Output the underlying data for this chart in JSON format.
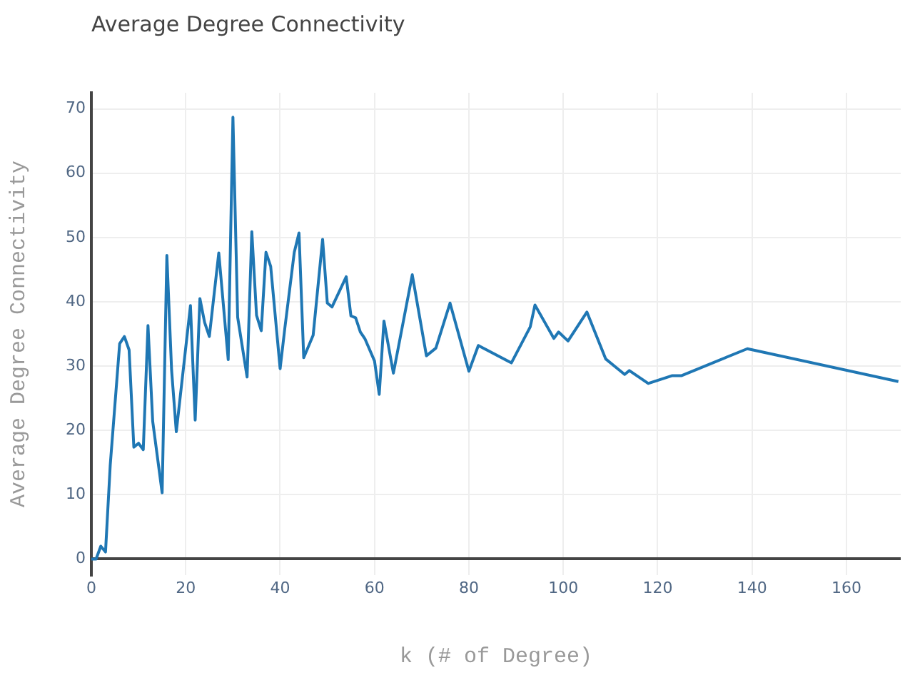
{
  "chart_data": {
    "type": "line",
    "title": "Average Degree Connectivity",
    "xlabel": "k (# of Degree)",
    "ylabel": "Average Degree Connectivity",
    "x": [
      0,
      1,
      2,
      3,
      4,
      6,
      7,
      8,
      9,
      10,
      11,
      12,
      13,
      15,
      16,
      17,
      18,
      21,
      22,
      23,
      24,
      25,
      27,
      29,
      30,
      31,
      33,
      34,
      35,
      36,
      37,
      38,
      40,
      41,
      43,
      44,
      45,
      47,
      49,
      50,
      51,
      54,
      55,
      56,
      57,
      58,
      60,
      61,
      62,
      64,
      68,
      71,
      73,
      76,
      80,
      82,
      89,
      93,
      94,
      98,
      99,
      101,
      105,
      109,
      113,
      114,
      118,
      123,
      125,
      139,
      171
    ],
    "series": [
      {
        "color": "#1f77b4",
        "values": [
          0,
          0,
          2,
          1.1,
          14.6,
          33.5,
          34.6,
          32.5,
          17.4,
          18,
          17,
          36.3,
          21.4,
          10.3,
          47.2,
          29.4,
          19.8,
          39.4,
          21.6,
          40.5,
          36.8,
          34.6,
          47.6,
          31,
          68.7,
          37.6,
          28.3,
          50.9,
          37.9,
          35.5,
          47.7,
          45.5,
          29.6,
          35.9,
          47.7,
          50.7,
          31.3,
          34.8,
          49.7,
          39.8,
          39.2,
          43.9,
          37.8,
          37.5,
          35.3,
          34.2,
          30.8,
          25.6,
          37,
          28.9,
          44.2,
          31.6,
          32.8,
          39.8,
          29.2,
          33.2,
          30.5,
          36.1,
          39.5,
          34.3,
          35.3,
          33.9,
          38.4,
          31.1,
          28.7,
          29.3,
          27.3,
          28.5,
          28.5,
          32.7,
          27.6
        ]
      }
    ],
    "xlim": [
      0,
      171.5
    ],
    "ylim": [
      -2.5,
      72.5
    ],
    "xticks": [
      0,
      20,
      40,
      60,
      80,
      100,
      120,
      140,
      160
    ],
    "yticks": [
      0,
      10,
      20,
      30,
      40,
      50,
      60,
      70
    ],
    "grid": true,
    "legend": false,
    "marker": "none",
    "line_style": "solid"
  }
}
